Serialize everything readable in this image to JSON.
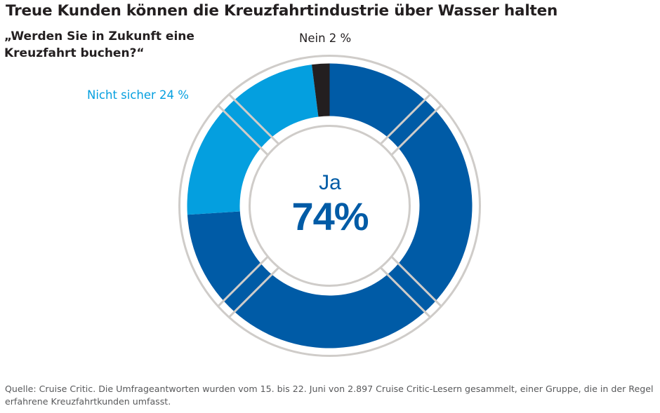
{
  "header": {
    "title": "Treue Kunden können die Kreuzfahrtindustrie über Wasser halten",
    "question": "„Werden Sie in Zukunft eine Kreuzfahrt buchen?“"
  },
  "labels": {
    "nein": "Nein 2 %",
    "nicht_sicher": "Nicht sicher 24 %",
    "ja_word": "Ja",
    "ja_value": "74%"
  },
  "footer": {
    "source": "Quelle: Cruise Critic. Die Umfrageantworten wurden vom 15. bis 22. Juni von 2.897 Cruise Critic-Lesern gesammelt, einer Gruppe, die in der Regel erfahrene Kreuzfahrtkunden umfasst."
  },
  "colors": {
    "ja": "#005BA6",
    "nicht_sicher": "#049FDF",
    "nein": "#231F20",
    "ring": "#CFCCC9"
  },
  "chart_data": {
    "type": "pie",
    "style": "donut (lifebuoy)",
    "title": "Treue Kunden können die Kreuzfahrtindustrie über Wasser halten",
    "subtitle": "„Werden Sie in Zukunft eine Kreuzfahrt buchen?“",
    "categories": [
      "Ja",
      "Nicht sicher",
      "Nein"
    ],
    "values": [
      74,
      24,
      2
    ],
    "unit": "%",
    "slice_labels": [
      "Ja 74%",
      "Nicht sicher 24 %",
      "Nein 2 %"
    ],
    "colors": [
      "#005BA6",
      "#049FDF",
      "#231F20"
    ],
    "start": "12 o'clock",
    "direction": "clockwise",
    "legend": "none (direct labels)"
  }
}
